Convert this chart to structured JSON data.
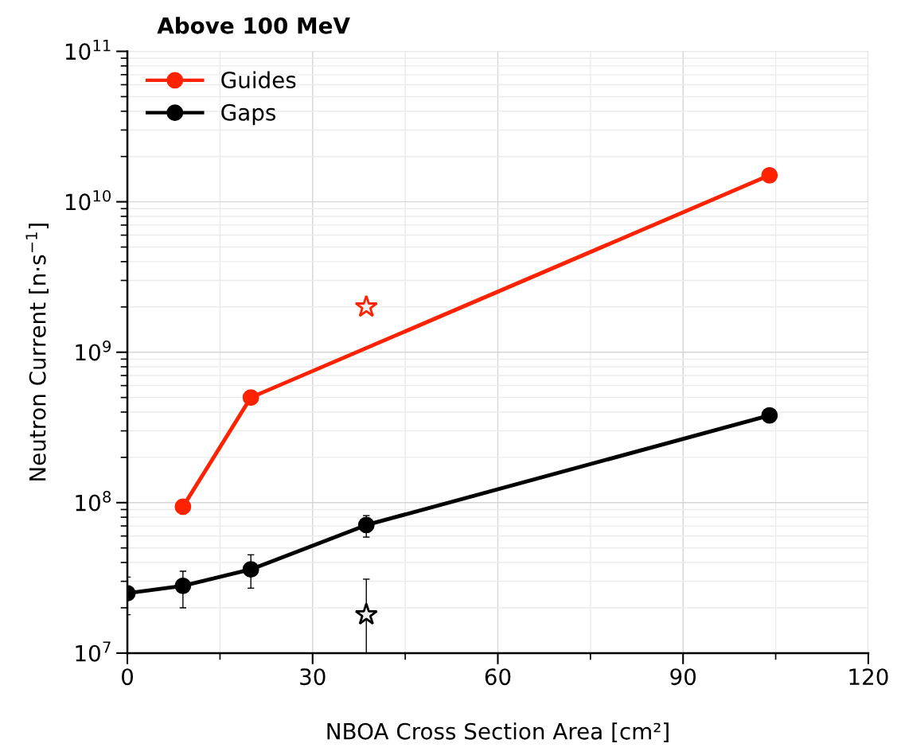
{
  "chart_data": {
    "type": "line",
    "title": "Above 100 MeV",
    "xlabel": "NBOA Cross Section Area [cm²]",
    "ylabel": "Neutron Current [n·s$^{−1}$]",
    "log": "y",
    "xlim": [
      0,
      120
    ],
    "xticks": [
      0,
      30,
      60,
      90,
      120
    ],
    "ylim": [
      10000000.0,
      100000000000.0
    ],
    "yticks": [
      {
        "value": 10000000.0,
        "label": "10$^{7}$"
      },
      {
        "value": 100000000.0,
        "label": "10$^{8}$"
      },
      {
        "value": 1000000000.0,
        "label": "10$^{9}$"
      },
      {
        "value": 10000000000.0,
        "label": "10$^{10}$"
      },
      {
        "value": 100000000000.0,
        "label": "10$^{11}$"
      }
    ],
    "grid": true,
    "legend": "top left",
    "marker": "circle",
    "series": [
      {
        "name": "Guides",
        "color": "#ff2200",
        "x": [
          9,
          20,
          104
        ],
        "values": [
          94000000.0,
          500000000.0,
          15000000000.0
        ]
      },
      {
        "name": "Gaps",
        "color": "#000000",
        "x": [
          0,
          9,
          20,
          38.7,
          104
        ],
        "values": [
          25000000.0,
          28000000.0,
          36000000.0,
          71000000.0,
          380000000.0
        ],
        "errors": [
          [
            18000000.0,
            32000000.0
          ],
          [
            20000000.0,
            35000000.0
          ],
          [
            27000000.0,
            45000000.0
          ],
          [
            59000000.0,
            82000000.0
          ],
          null
        ]
      },
      {
        "type": "scatter",
        "marker": "star",
        "color": "#ff2200",
        "x": [
          38.7
        ],
        "values": [
          2000000000.0
        ]
      },
      {
        "type": "scatter",
        "marker": "star",
        "color": "#000000",
        "x": [
          38.7
        ],
        "values": [
          18000000.0
        ],
        "errors": [
          [
            10000000.0,
            31000000.0
          ]
        ]
      }
    ]
  }
}
